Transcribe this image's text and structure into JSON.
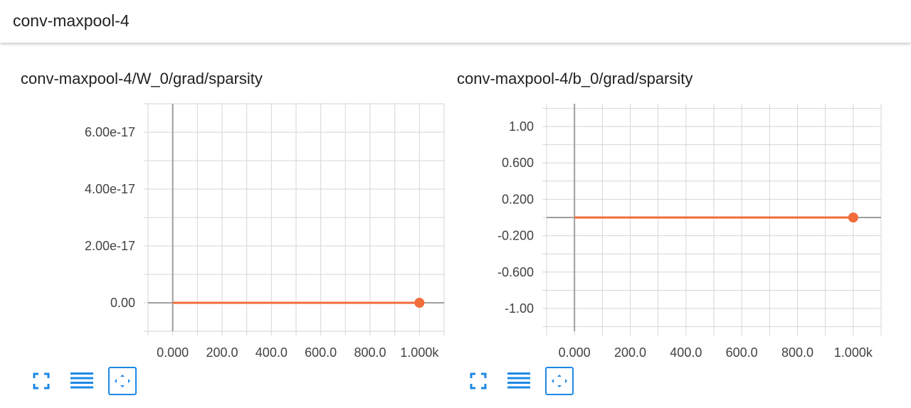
{
  "header": {
    "title": "conv-maxpool-4"
  },
  "colors": {
    "series": "#f26b3a",
    "grid": "#d6d6d6",
    "axis_zero": "#9e9e9e",
    "tool_icon": "#1e88e5"
  },
  "toolbar": {
    "buttons": [
      {
        "icon": "fullscreen-icon",
        "selected": false
      },
      {
        "icon": "lines-icon",
        "selected": false
      },
      {
        "icon": "fit-domain-icon",
        "selected": true
      }
    ]
  },
  "chart_data": [
    {
      "type": "line",
      "title": "conv-maxpool-4/W_0/grad/sparsity",
      "xlim": [
        -100,
        1100
      ],
      "ylim": [
        -1e-17,
        7e-17
      ],
      "x_ticks": [
        0,
        200,
        400,
        600,
        800,
        1000
      ],
      "x_tick_labels": [
        "0.000",
        "200.0",
        "400.0",
        "600.0",
        "800.0",
        "1.000k"
      ],
      "y_ticks": [
        0,
        2e-17,
        4e-17,
        6e-17
      ],
      "y_tick_labels": [
        "0.00",
        "2.00e-17",
        "4.00e-17",
        "6.00e-17"
      ],
      "series": [
        {
          "x": [
            0,
            1000
          ],
          "y": [
            0,
            0
          ]
        }
      ]
    },
    {
      "type": "line",
      "title": "conv-maxpool-4/b_0/grad/sparsity",
      "xlim": [
        -100,
        1100
      ],
      "ylim": [
        -1.25,
        1.25
      ],
      "x_ticks": [
        0,
        200,
        400,
        600,
        800,
        1000
      ],
      "x_tick_labels": [
        "0.000",
        "200.0",
        "400.0",
        "600.0",
        "800.0",
        "1.000k"
      ],
      "y_ticks": [
        -1,
        -0.6,
        -0.2,
        0.2,
        0.6,
        1
      ],
      "y_tick_labels": [
        "-1.00",
        "-0.600",
        "-0.200",
        "0.200",
        "0.600",
        "1.00"
      ],
      "series": [
        {
          "x": [
            0,
            1000
          ],
          "y": [
            0,
            0
          ]
        }
      ]
    }
  ]
}
